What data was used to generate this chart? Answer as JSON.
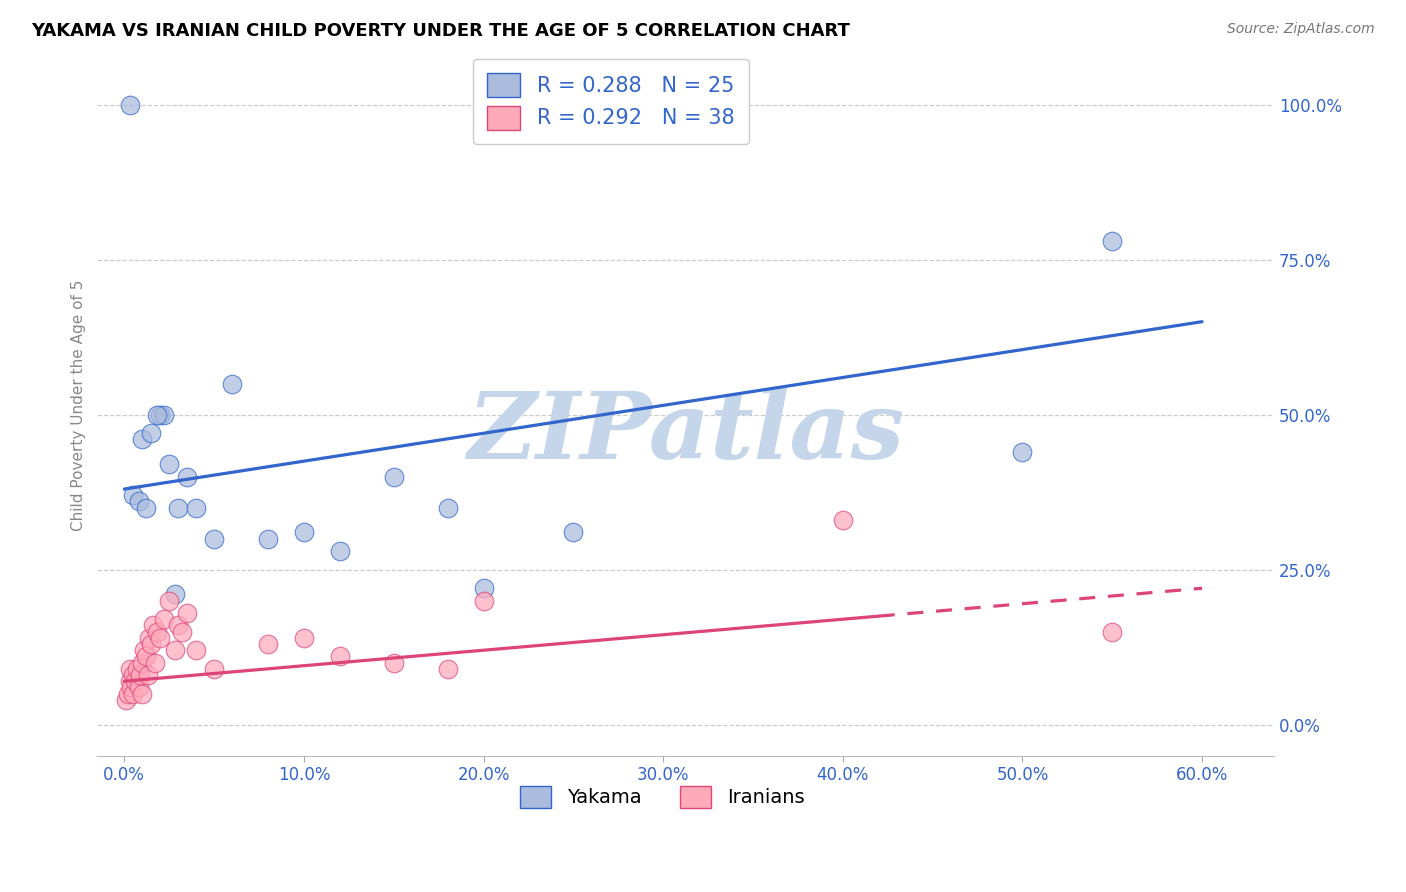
{
  "title": "YAKAMA VS IRANIAN CHILD POVERTY UNDER THE AGE OF 5 CORRELATION CHART",
  "source": "Source: ZipAtlas.com",
  "xlabel_tick_vals": [
    0,
    10,
    20,
    30,
    40,
    50,
    60
  ],
  "ylabel_tick_vals": [
    0,
    25,
    50,
    75,
    100
  ],
  "xlim": [
    -1.5,
    64
  ],
  "ylim": [
    -5,
    108
  ],
  "yakama_R": 0.288,
  "yakama_N": 25,
  "iranian_R": 0.292,
  "iranian_N": 38,
  "yakama_scatter_color": "#AABBDD",
  "iranian_scatter_color": "#FFAABB",
  "yakama_line_color": "#3366CC",
  "iranian_line_color": "#DD4477",
  "watermark": "ZIPatlas",
  "watermark_color": "#C5D5EA",
  "ylabel": "Child Poverty Under the Age of 5",
  "legend_yakama": "Yakama",
  "legend_iranians": "Iranians",
  "yakama_x": [
    1.0,
    1.5,
    2.0,
    2.2,
    2.5,
    3.0,
    4.0,
    5.0,
    6.0,
    8.0,
    10.0,
    12.0,
    15.0,
    18.0,
    20.0,
    0.5,
    1.8,
    3.5,
    50.0,
    55.0,
    0.3,
    2.8,
    25.0,
    0.8,
    1.2
  ],
  "yakama_y": [
    46,
    47,
    50,
    50,
    42,
    35,
    35,
    30,
    55,
    30,
    31,
    28,
    40,
    35,
    22,
    37,
    50,
    40,
    44,
    78,
    100,
    21,
    31,
    36,
    35
  ],
  "iranian_x": [
    0.1,
    0.2,
    0.3,
    0.3,
    0.4,
    0.5,
    0.5,
    0.6,
    0.7,
    0.8,
    0.9,
    1.0,
    1.0,
    1.1,
    1.2,
    1.3,
    1.4,
    1.5,
    1.6,
    1.7,
    1.8,
    2.0,
    2.2,
    2.5,
    2.8,
    3.0,
    3.2,
    3.5,
    4.0,
    5.0,
    8.0,
    10.0,
    12.0,
    15.0,
    18.0,
    20.0,
    40.0,
    55.0
  ],
  "iranian_y": [
    4,
    5,
    7,
    9,
    6,
    8,
    5,
    7,
    9,
    6,
    8,
    10,
    5,
    12,
    11,
    8,
    14,
    13,
    16,
    10,
    15,
    14,
    17,
    20,
    12,
    16,
    15,
    18,
    12,
    9,
    13,
    14,
    11,
    10,
    9,
    20,
    33,
    15
  ],
  "yakama_line_x0": 0,
  "yakama_line_y0": 38,
  "yakama_line_x1": 60,
  "yakama_line_y1": 65,
  "iranian_line_x0": 0,
  "iranian_line_y0": 7,
  "iranian_line_x1": 60,
  "iranian_line_y1": 22,
  "iranian_solid_end": 42,
  "tick_color": "#3366CC",
  "axis_label_color": "#888888",
  "grid_color": "#CCCCCC",
  "bg_color": "#FFFFFF",
  "title_fontsize": 13,
  "source_fontsize": 10,
  "tick_fontsize": 12,
  "ylabel_fontsize": 11,
  "legend_fontsize": 15,
  "scatter_size": 180,
  "scatter_alpha": 0.72,
  "scatter_edge_width": 0.8
}
